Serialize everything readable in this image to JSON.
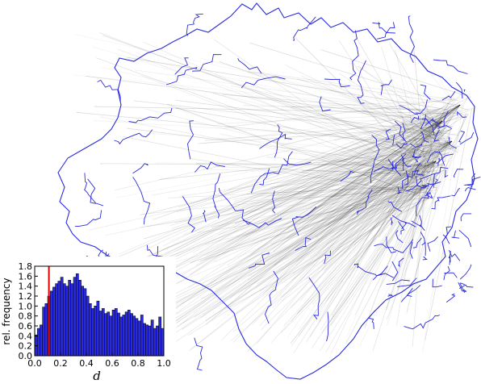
{
  "map": {
    "region_boundary_color": "#2b2bdd",
    "flow_line_color": "#000000",
    "background_color": "#ffffff"
  },
  "chart_data": {
    "type": "bar",
    "xlabel": "d",
    "ylabel": "rel. frequency",
    "xlim": [
      0.0,
      1.0
    ],
    "ylim": [
      0.0,
      1.8
    ],
    "x_ticks": [
      "0.0",
      "0.2",
      "0.4",
      "0.6",
      "0.8",
      "1.0"
    ],
    "y_ticks": [
      "0.0",
      "0.2",
      "0.4",
      "0.6",
      "0.8",
      "1.0",
      "1.2",
      "1.4",
      "1.6",
      "1.8"
    ],
    "bar_color": "#2a2ae0",
    "marker_line": {
      "x": 0.11,
      "color": "#e00000"
    },
    "bin_width": 0.02,
    "values": [
      0.42,
      0.55,
      0.62,
      0.98,
      1.05,
      1.2,
      1.3,
      1.38,
      1.45,
      1.5,
      1.58,
      1.45,
      1.4,
      1.52,
      1.45,
      1.58,
      1.65,
      1.52,
      1.4,
      1.35,
      1.2,
      1.05,
      0.95,
      1.0,
      1.1,
      0.9,
      0.95,
      0.85,
      0.88,
      0.8,
      0.92,
      0.95,
      0.86,
      0.78,
      0.82,
      0.88,
      0.92,
      0.85,
      0.8,
      0.75,
      0.7,
      0.82,
      0.65,
      0.62,
      0.6,
      0.72,
      0.55,
      0.6,
      0.78,
      0.55
    ]
  }
}
